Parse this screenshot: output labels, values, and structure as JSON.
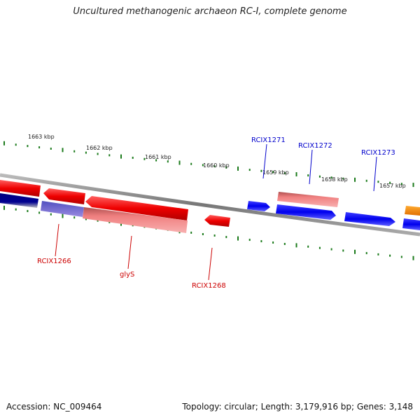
{
  "title": "Uncultured methanogenic archaeon RC-I, complete genome",
  "footer": {
    "accession": "Accession: NC_009464",
    "summary": "Topology: circular; Length: 3,179,916 bp; Genes: 3,148"
  },
  "colors": {
    "backbone": "#888888",
    "tick": "#1a7a1a",
    "forward_gene": "#0000ee",
    "reverse_gene": "#ee0000",
    "reverse_gene_light": "#f08080",
    "other_gene": "#ff8c00",
    "label_forward": "#0000cc",
    "label_reverse": "#cc0000"
  },
  "scale_labels": [
    "1663 kbp",
    "1662 kbp",
    "1661 kbp",
    "1660 kbp",
    "1659 kbp",
    "1658 kbp",
    "1657 kbp"
  ],
  "gene_labels": [
    {
      "text": "RCIX1271",
      "strand": "forward"
    },
    {
      "text": "RCIX1272",
      "strand": "forward"
    },
    {
      "text": "RCIX1273",
      "strand": "forward"
    },
    {
      "text": "RCIX1266",
      "strand": "reverse"
    },
    {
      "text": "glyS",
      "strand": "reverse"
    },
    {
      "text": "RCIX1268",
      "strand": "reverse"
    }
  ]
}
